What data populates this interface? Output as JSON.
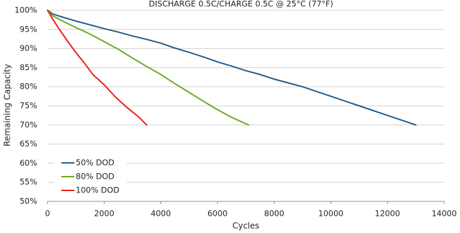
{
  "chart_data": {
    "type": "line",
    "title": "DISCHARGE 0.5C/CHARGE 0.5C @ 25°C (77°F)",
    "xlabel": "Cycles",
    "ylabel": "Remaining Capacity",
    "xlim": [
      0,
      14000
    ],
    "ylim": [
      50,
      100
    ],
    "x_ticks": [
      0,
      2000,
      4000,
      6000,
      8000,
      10000,
      12000,
      14000
    ],
    "y_ticks": [
      50,
      55,
      60,
      65,
      70,
      75,
      80,
      85,
      90,
      95,
      100
    ],
    "y_tick_format": "percent",
    "grid": "horizontal",
    "legend_position": "lower-left",
    "series": [
      {
        "name": "50% DOD",
        "color": "#1f5c8b",
        "x": [
          0,
          200,
          500,
          1000,
          1500,
          2000,
          2500,
          3000,
          3500,
          4000,
          4500,
          5000,
          5500,
          6000,
          6500,
          7000,
          7500,
          8000,
          8500,
          9000,
          10000,
          11000,
          12000,
          13000
        ],
        "y": [
          100,
          99,
          98.3,
          97.2,
          96.2,
          95.2,
          94.3,
          93.3,
          92.4,
          91.4,
          90.1,
          89,
          87.8,
          86.5,
          85.4,
          84.2,
          83.2,
          82,
          81,
          80,
          77.5,
          75,
          72.5,
          70
        ]
      },
      {
        "name": "80% DOD",
        "color": "#6aaa1e",
        "x": [
          0,
          200,
          500,
          1000,
          1500,
          2000,
          2500,
          3000,
          3500,
          4000,
          4500,
          5000,
          5500,
          6000,
          6500,
          7000,
          7100
        ],
        "y": [
          100,
          98.5,
          97.3,
          95.5,
          93.8,
          91.8,
          89.8,
          87.5,
          85.3,
          83.2,
          80.8,
          78.5,
          76.2,
          74,
          72,
          70.3,
          70
        ]
      },
      {
        "name": "100% DOD",
        "color": "#ee1c1c",
        "x": [
          0,
          100,
          200,
          400,
          700,
          1000,
          1300,
          1600,
          2000,
          2400,
          2800,
          3200,
          3500
        ],
        "y": [
          100,
          98.8,
          97.5,
          95.2,
          92,
          89,
          86.2,
          83.2,
          80.5,
          77.3,
          74.6,
          72.2,
          70
        ]
      }
    ]
  }
}
